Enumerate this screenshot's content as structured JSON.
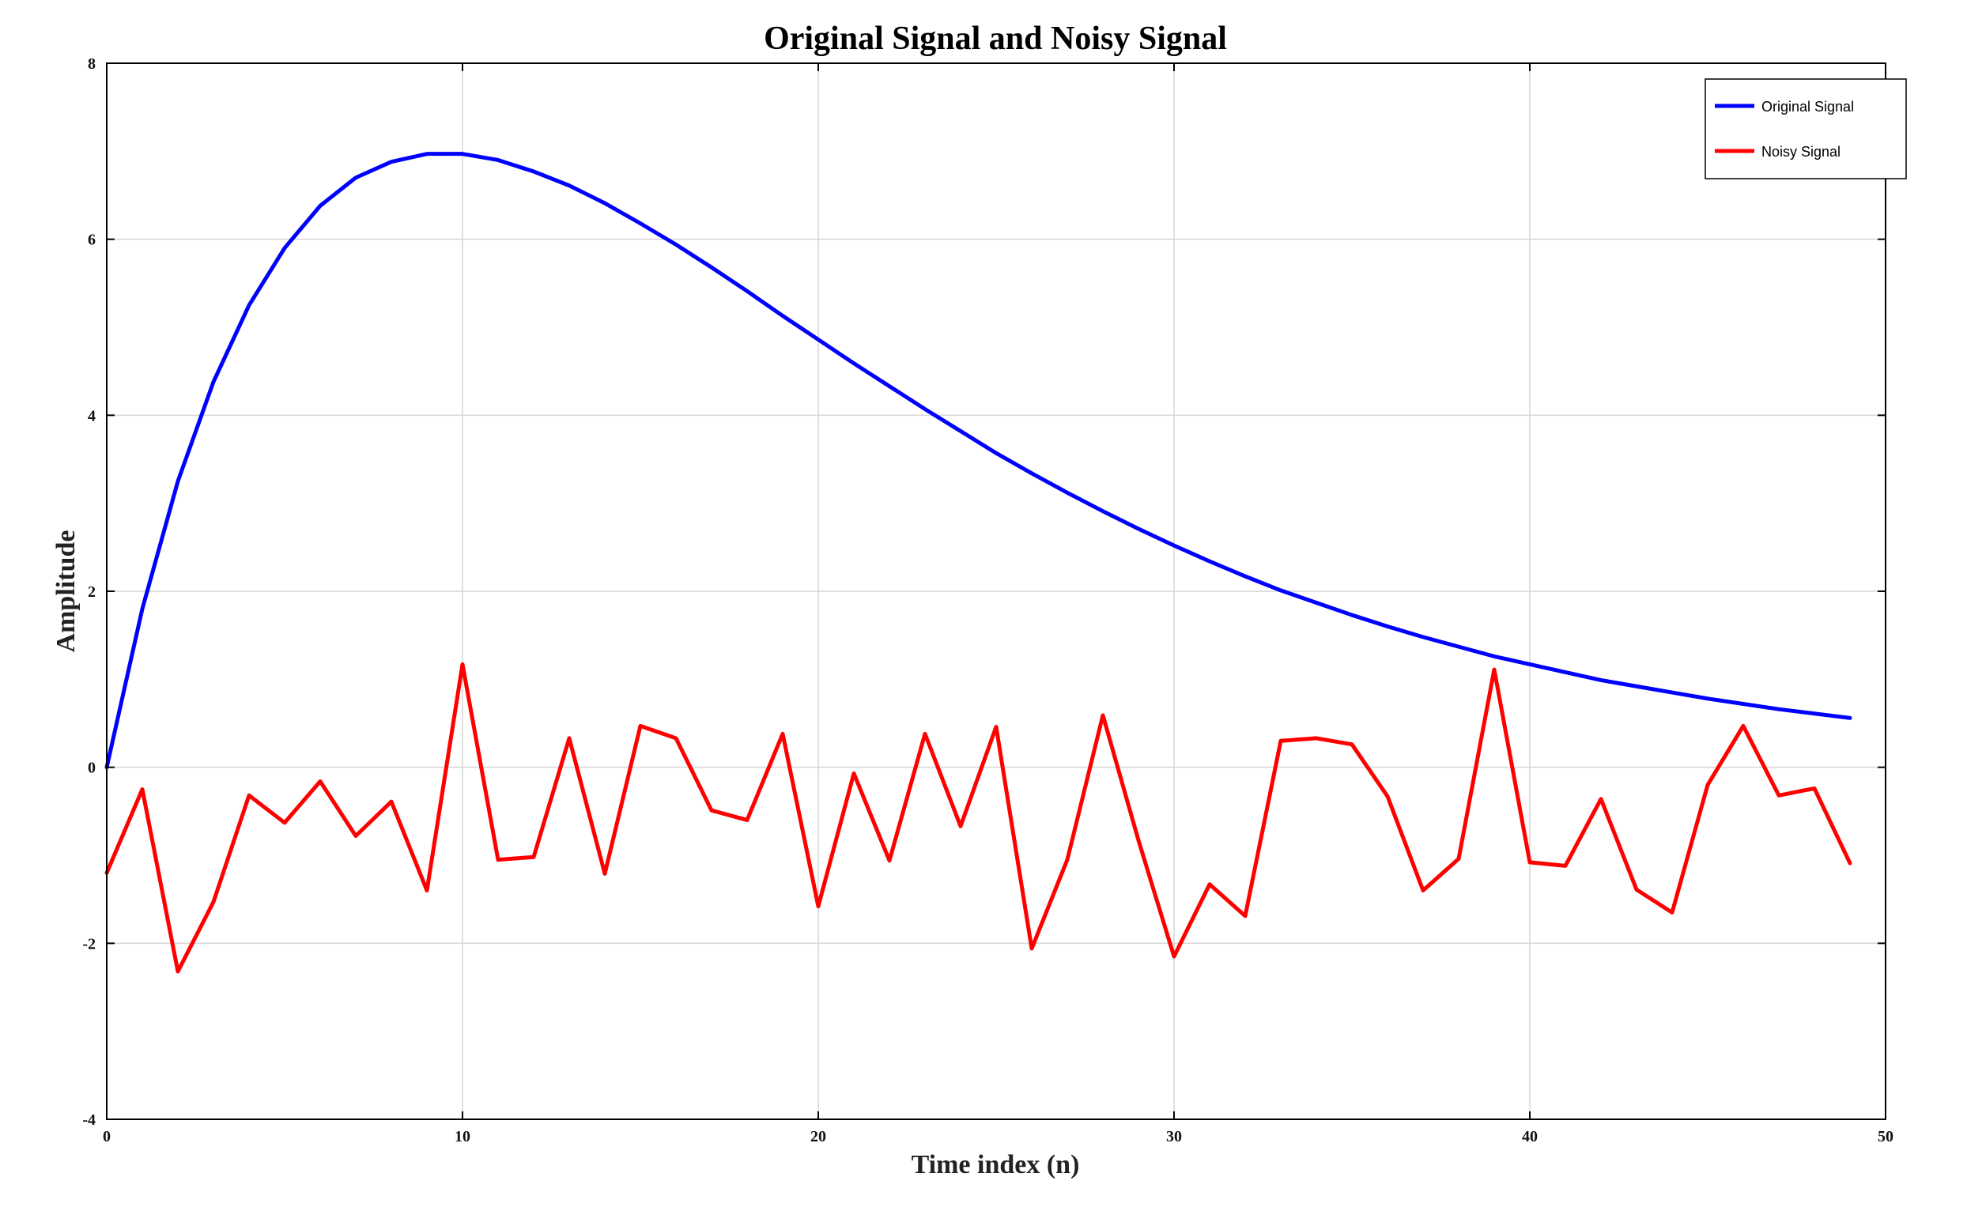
{
  "chart_data": {
    "type": "line",
    "title": "Original Signal and Noisy Signal",
    "xlabel": "Time index (n)",
    "ylabel": "Amplitude",
    "xlim": [
      0,
      50
    ],
    "ylim": [
      -4,
      8
    ],
    "xticks": [
      0,
      10,
      20,
      30,
      40,
      50
    ],
    "yticks": [
      -4,
      -2,
      0,
      2,
      4,
      6,
      8
    ],
    "grid": true,
    "legend_position": "top-right",
    "x": [
      0,
      1,
      2,
      3,
      4,
      5,
      6,
      7,
      8,
      9,
      10,
      11,
      12,
      13,
      14,
      15,
      16,
      17,
      18,
      19,
      20,
      21,
      22,
      23,
      24,
      25,
      26,
      27,
      28,
      29,
      30,
      31,
      32,
      33,
      34,
      35,
      36,
      37,
      38,
      39,
      40,
      41,
      42,
      43,
      44,
      45,
      46,
      47,
      48,
      49
    ],
    "series": [
      {
        "name": "Original Signal",
        "color": "#0000ff",
        "values": [
          0.0,
          1.8,
          3.25,
          4.38,
          5.25,
          5.9,
          6.38,
          6.7,
          6.88,
          6.97,
          6.97,
          6.9,
          6.77,
          6.61,
          6.41,
          6.18,
          5.94,
          5.68,
          5.41,
          5.13,
          4.86,
          4.59,
          4.33,
          4.07,
          3.82,
          3.57,
          3.34,
          3.12,
          2.91,
          2.71,
          2.52,
          2.34,
          2.17,
          2.01,
          1.87,
          1.73,
          1.6,
          1.48,
          1.37,
          1.26,
          1.17,
          1.08,
          0.99,
          0.92,
          0.85,
          0.78,
          0.72,
          0.66,
          0.61,
          0.56
        ]
      },
      {
        "name": "Noisy Signal",
        "color": "#ff0000",
        "values": [
          -1.2,
          -0.25,
          -2.32,
          -1.53,
          -0.32,
          -0.63,
          -0.16,
          -0.78,
          -0.39,
          -1.4,
          1.17,
          -1.05,
          -1.02,
          0.33,
          -1.21,
          0.47,
          0.33,
          -0.49,
          -0.6,
          0.38,
          -1.58,
          -0.07,
          -1.06,
          0.38,
          -0.67,
          0.46,
          -2.06,
          -1.05,
          0.59,
          -0.83,
          -2.15,
          -1.33,
          -1.69,
          0.3,
          0.33,
          0.26,
          -0.33,
          -1.4,
          -1.04,
          1.11,
          -1.08,
          -1.12,
          -0.36,
          -1.39,
          -1.65,
          -0.2,
          0.47,
          -0.32,
          -0.24,
          -1.09
        ]
      }
    ]
  }
}
